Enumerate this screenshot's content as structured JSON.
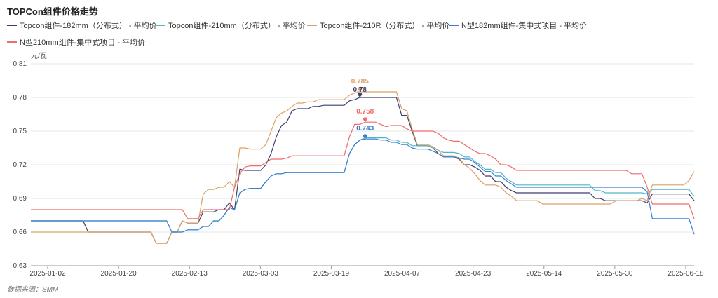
{
  "chart_data": {
    "type": "line",
    "title": "TOPCon组件价格走势",
    "ylabel": "元/瓦",
    "source": "数据来源：SMM",
    "ylim": [
      0.63,
      0.81
    ],
    "yticks": [
      "0.63",
      "0.66",
      "0.69",
      "0.72",
      "0.75",
      "0.78",
      "0.81"
    ],
    "x_ticks": [
      "2025-01-02",
      "2025-01-20",
      "2025-02-13",
      "2025-03-03",
      "2025-03-19",
      "2025-04-07",
      "2025-04-23",
      "2025-05-14",
      "2025-05-30",
      "2025-06-18"
    ],
    "grid": true,
    "legend_position": "top",
    "series": [
      {
        "name": "Topcon组件-182mm（分布式） - 平均价",
        "color": "#3c3f6e",
        "values": [
          0.67,
          0.67,
          0.67,
          0.67,
          0.67,
          0.67,
          0.67,
          0.67,
          0.67,
          0.67,
          0.67,
          0.66,
          0.66,
          0.66,
          0.66,
          0.66,
          0.66,
          0.66,
          0.66,
          0.66,
          0.66,
          0.66,
          0.66,
          0.66,
          0.65,
          0.65,
          0.65,
          0.66,
          0.66,
          0.67,
          0.668,
          0.668,
          0.668,
          0.678,
          0.678,
          0.678,
          0.68,
          0.68,
          0.686,
          0.68,
          0.716,
          0.715,
          0.715,
          0.715,
          0.715,
          0.72,
          0.73,
          0.745,
          0.755,
          0.758,
          0.768,
          0.77,
          0.77,
          0.77,
          0.772,
          0.772,
          0.773,
          0.773,
          0.773,
          0.773,
          0.773,
          0.777,
          0.778,
          0.78,
          0.78,
          0.78,
          0.78,
          0.78,
          0.78,
          0.78,
          0.78,
          0.764,
          0.764,
          0.75,
          0.737,
          0.737,
          0.737,
          0.735,
          0.73,
          0.727,
          0.727,
          0.727,
          0.725,
          0.72,
          0.72,
          0.718,
          0.715,
          0.71,
          0.71,
          0.705,
          0.705,
          0.7,
          0.697,
          0.695,
          0.695,
          0.695,
          0.695,
          0.695,
          0.695,
          0.695,
          0.695,
          0.695,
          0.695,
          0.695,
          0.695,
          0.695,
          0.695,
          0.695,
          0.69,
          0.69,
          0.688,
          0.688,
          0.688,
          0.688,
          0.688,
          0.688,
          0.688,
          0.688,
          0.686,
          0.694,
          0.694,
          0.694,
          0.694,
          0.694,
          0.694,
          0.694,
          0.694,
          0.688
        ]
      },
      {
        "name": "Topcon组件-210mm（分布式） - 平均价",
        "color": "#4fb6c8",
        "values": [
          0.67,
          0.67,
          0.67,
          0.67,
          0.67,
          0.67,
          0.67,
          0.67,
          0.67,
          0.67,
          0.67,
          0.67,
          0.67,
          0.67,
          0.67,
          0.67,
          0.67,
          0.67,
          0.67,
          0.67,
          0.67,
          0.67,
          0.67,
          0.67,
          0.67,
          0.67,
          0.67,
          0.66,
          0.66,
          0.66,
          0.662,
          0.662,
          0.662,
          0.665,
          0.665,
          0.67,
          0.67,
          0.675,
          0.682,
          0.68,
          0.695,
          0.698,
          0.699,
          0.699,
          0.699,
          0.705,
          0.71,
          0.712,
          0.712,
          0.713,
          0.713,
          0.713,
          0.713,
          0.713,
          0.713,
          0.713,
          0.713,
          0.713,
          0.713,
          0.713,
          0.713,
          0.73,
          0.738,
          0.742,
          0.744,
          0.744,
          0.744,
          0.744,
          0.744,
          0.742,
          0.742,
          0.74,
          0.74,
          0.737,
          0.737,
          0.737,
          0.737,
          0.735,
          0.733,
          0.731,
          0.731,
          0.731,
          0.73,
          0.727,
          0.727,
          0.723,
          0.72,
          0.716,
          0.716,
          0.713,
          0.713,
          0.708,
          0.705,
          0.702,
          0.702,
          0.702,
          0.702,
          0.702,
          0.702,
          0.702,
          0.702,
          0.702,
          0.702,
          0.702,
          0.702,
          0.702,
          0.702,
          0.702,
          0.697,
          0.697,
          0.695,
          0.695,
          0.695,
          0.695,
          0.695,
          0.695,
          0.695,
          0.695,
          0.694,
          0.698,
          0.698,
          0.698,
          0.698,
          0.698,
          0.698,
          0.698,
          0.698,
          0.692
        ]
      },
      {
        "name": "Topcon组件-210R（分布式） - 平均价",
        "color": "#d9a066",
        "values": [
          0.66,
          0.66,
          0.66,
          0.66,
          0.66,
          0.66,
          0.66,
          0.66,
          0.66,
          0.66,
          0.66,
          0.66,
          0.66,
          0.66,
          0.66,
          0.66,
          0.66,
          0.66,
          0.66,
          0.66,
          0.66,
          0.66,
          0.66,
          0.66,
          0.65,
          0.65,
          0.65,
          0.66,
          0.66,
          0.67,
          0.668,
          0.668,
          0.668,
          0.694,
          0.698,
          0.698,
          0.7,
          0.7,
          0.705,
          0.7,
          0.735,
          0.735,
          0.734,
          0.734,
          0.734,
          0.738,
          0.75,
          0.762,
          0.766,
          0.768,
          0.772,
          0.775,
          0.775,
          0.776,
          0.776,
          0.778,
          0.778,
          0.778,
          0.778,
          0.778,
          0.778,
          0.782,
          0.784,
          0.785,
          0.785,
          0.785,
          0.785,
          0.785,
          0.785,
          0.785,
          0.785,
          0.77,
          0.768,
          0.752,
          0.738,
          0.738,
          0.738,
          0.736,
          0.733,
          0.728,
          0.728,
          0.728,
          0.726,
          0.72,
          0.717,
          0.712,
          0.706,
          0.702,
          0.702,
          0.702,
          0.7,
          0.695,
          0.692,
          0.688,
          0.688,
          0.688,
          0.688,
          0.688,
          0.685,
          0.685,
          0.685,
          0.685,
          0.685,
          0.685,
          0.685,
          0.685,
          0.685,
          0.685,
          0.685,
          0.685,
          0.685,
          0.685,
          0.688,
          0.688,
          0.688,
          0.688,
          0.688,
          0.69,
          0.688,
          0.702,
          0.702,
          0.702,
          0.702,
          0.702,
          0.702,
          0.702,
          0.706,
          0.714
        ]
      },
      {
        "name": "N型182mm组件-集中式项目 - 平均价",
        "color": "#3a7fcf",
        "values": [
          0.67,
          0.67,
          0.67,
          0.67,
          0.67,
          0.67,
          0.67,
          0.67,
          0.67,
          0.67,
          0.67,
          0.67,
          0.67,
          0.67,
          0.67,
          0.67,
          0.67,
          0.67,
          0.67,
          0.67,
          0.67,
          0.67,
          0.67,
          0.67,
          0.67,
          0.67,
          0.67,
          0.66,
          0.66,
          0.66,
          0.662,
          0.662,
          0.662,
          0.665,
          0.665,
          0.67,
          0.67,
          0.675,
          0.682,
          0.68,
          0.695,
          0.698,
          0.699,
          0.699,
          0.699,
          0.705,
          0.71,
          0.712,
          0.712,
          0.713,
          0.713,
          0.713,
          0.713,
          0.713,
          0.713,
          0.713,
          0.713,
          0.713,
          0.713,
          0.713,
          0.713,
          0.73,
          0.738,
          0.742,
          0.743,
          0.743,
          0.743,
          0.742,
          0.742,
          0.74,
          0.74,
          0.738,
          0.738,
          0.735,
          0.734,
          0.734,
          0.734,
          0.732,
          0.73,
          0.727,
          0.727,
          0.727,
          0.726,
          0.725,
          0.725,
          0.722,
          0.718,
          0.714,
          0.714,
          0.71,
          0.71,
          0.706,
          0.703,
          0.7,
          0.7,
          0.7,
          0.7,
          0.7,
          0.7,
          0.7,
          0.7,
          0.7,
          0.7,
          0.7,
          0.7,
          0.7,
          0.7,
          0.7,
          0.7,
          0.7,
          0.7,
          0.7,
          0.7,
          0.7,
          0.7,
          0.7,
          0.7,
          0.7,
          0.696,
          0.672,
          0.672,
          0.672,
          0.672,
          0.672,
          0.672,
          0.672,
          0.672,
          0.658
        ]
      },
      {
        "name": "N型210mm组件-集中式项目 - 平均价",
        "color": "#f06b6b",
        "values": [
          0.68,
          0.68,
          0.68,
          0.68,
          0.68,
          0.68,
          0.68,
          0.68,
          0.68,
          0.68,
          0.68,
          0.68,
          0.68,
          0.68,
          0.68,
          0.68,
          0.68,
          0.68,
          0.68,
          0.68,
          0.68,
          0.68,
          0.68,
          0.68,
          0.68,
          0.68,
          0.68,
          0.68,
          0.68,
          0.68,
          0.672,
          0.672,
          0.672,
          0.68,
          0.68,
          0.68,
          0.68,
          0.68,
          0.68,
          0.7,
          0.712,
          0.718,
          0.719,
          0.719,
          0.719,
          0.722,
          0.725,
          0.725,
          0.725,
          0.726,
          0.728,
          0.728,
          0.728,
          0.728,
          0.728,
          0.728,
          0.728,
          0.728,
          0.728,
          0.728,
          0.728,
          0.745,
          0.756,
          0.756,
          0.758,
          0.758,
          0.758,
          0.756,
          0.754,
          0.755,
          0.755,
          0.755,
          0.752,
          0.75,
          0.75,
          0.75,
          0.75,
          0.75,
          0.748,
          0.744,
          0.742,
          0.741,
          0.741,
          0.738,
          0.735,
          0.732,
          0.73,
          0.73,
          0.728,
          0.725,
          0.72,
          0.72,
          0.718,
          0.715,
          0.715,
          0.715,
          0.715,
          0.715,
          0.715,
          0.715,
          0.715,
          0.715,
          0.715,
          0.715,
          0.715,
          0.715,
          0.715,
          0.715,
          0.715,
          0.715,
          0.715,
          0.715,
          0.715,
          0.715,
          0.715,
          0.712,
          0.712,
          0.712,
          0.7,
          0.685,
          0.685,
          0.685,
          0.685,
          0.685,
          0.685,
          0.685,
          0.685,
          0.672
        ]
      }
    ],
    "data_labels": [
      {
        "series": 2,
        "index": 63,
        "text": "0.785"
      },
      {
        "series": 0,
        "index": 63,
        "text": "0.78"
      },
      {
        "series": 4,
        "index": 64,
        "text": "0.758"
      },
      {
        "series": 3,
        "index": 64,
        "text": "0.743"
      }
    ]
  }
}
